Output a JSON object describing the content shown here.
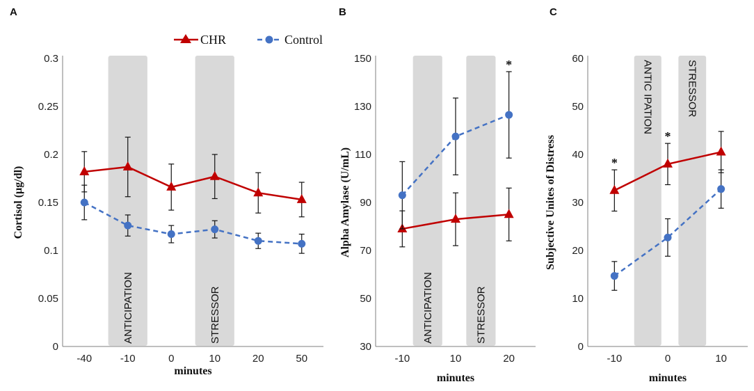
{
  "legend": {
    "chr_label": "CHR",
    "control_label": "Control"
  },
  "colors": {
    "chr": "#C00000",
    "control": "#4472C4",
    "band": "#D9D9D9",
    "axis": "#7F7F7F"
  },
  "chart_data": [
    {
      "panel": "A",
      "type": "line",
      "ylabel": "Cortisol (µg/dl)",
      "xlabel": "minutes",
      "ylim": [
        0,
        0.3
      ],
      "yticks": [
        "0",
        "0.05",
        "0.1",
        "0.15",
        "0.2",
        "0.25",
        "0.3"
      ],
      "categories": [
        "-40",
        "-10",
        "0",
        "10",
        "20",
        "50"
      ],
      "bands": [
        {
          "label": "ANTICIPATION",
          "from": 0.55,
          "to": 1.45
        },
        {
          "label": "STRESSOR",
          "from": 2.55,
          "to": 3.45
        }
      ],
      "series": [
        {
          "name": "CHR",
          "values": [
            0.182,
            0.187,
            0.166,
            0.177,
            0.16,
            0.153
          ],
          "errors": [
            0.021,
            0.031,
            0.024,
            0.023,
            0.021,
            0.018
          ]
        },
        {
          "name": "Control",
          "values": [
            0.15,
            0.126,
            0.117,
            0.122,
            0.11,
            0.107
          ],
          "errors": [
            0.018,
            0.011,
            0.009,
            0.009,
            0.008,
            0.01
          ]
        }
      ],
      "significance": []
    },
    {
      "panel": "B",
      "type": "line",
      "ylabel": "Alpha Amylase (U/mL)",
      "xlabel": "minutes",
      "ylim": [
        30,
        150
      ],
      "yticks": [
        "30",
        "50",
        "70",
        "90",
        "110",
        "130",
        "150"
      ],
      "categories": [
        "-10",
        "10",
        "20"
      ],
      "bands": [
        {
          "label": "ANTICIPATION",
          "from": 0.2,
          "to": 0.75
        },
        {
          "label": "STRESSOR",
          "from": 1.2,
          "to": 1.75
        }
      ],
      "series": [
        {
          "name": "CHR",
          "values": [
            79,
            83,
            85
          ],
          "errors": [
            7.5,
            11,
            11
          ]
        },
        {
          "name": "Control",
          "values": [
            93,
            117.5,
            126.5
          ],
          "errors": [
            14,
            16,
            18
          ]
        }
      ],
      "significance": [
        {
          "index": 2,
          "label": "*"
        }
      ]
    },
    {
      "panel": "C",
      "type": "line",
      "ylabel": "Subjective Unites of Distress",
      "xlabel": "minutes",
      "ylim": [
        0,
        60
      ],
      "yticks": [
        "0",
        "10",
        "20",
        "30",
        "40",
        "50",
        "60"
      ],
      "categories": [
        "-10",
        "0",
        "10"
      ],
      "bands": [
        {
          "label": "ANTIC IPATION",
          "from": 0.37,
          "to": 0.88
        },
        {
          "label": "STRESSOR",
          "from": 1.2,
          "to": 1.72
        }
      ],
      "series": [
        {
          "name": "CHR",
          "values": [
            32.5,
            38,
            40.5
          ],
          "errors": [
            4.3,
            4.3,
            4.3
          ]
        },
        {
          "name": "Control",
          "values": [
            14.7,
            22.7,
            32.8
          ],
          "errors": [
            3,
            3.9,
            4
          ]
        }
      ],
      "significance": [
        {
          "index": 0,
          "label": "*"
        },
        {
          "index": 1,
          "label": "*"
        }
      ]
    }
  ]
}
